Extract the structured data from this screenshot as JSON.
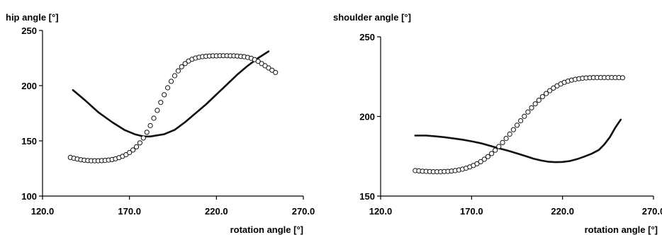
{
  "chart_data": [
    {
      "type": "line",
      "title": "",
      "ylabel": "hip angle [°]",
      "xlabel": "rotation angle [°]",
      "xlim": [
        120,
        270
      ],
      "ylim": [
        100,
        250
      ],
      "xticks": [
        "120.0",
        "170.0",
        "220.0",
        "270.0"
      ],
      "yticks": [
        "100",
        "150",
        "200",
        "250"
      ],
      "grid": false,
      "legend": "none",
      "series": [
        {
          "style": "solid-line",
          "color": "#111111",
          "x": [
            137.5,
            145,
            152,
            160,
            167,
            173,
            178,
            182,
            186,
            190,
            196,
            202,
            208,
            214,
            220,
            226,
            232,
            238,
            244,
            250
          ],
          "y": [
            196,
            186,
            176,
            167,
            160,
            156,
            154,
            154,
            155,
            156,
            160,
            167,
            175,
            183,
            192,
            201,
            210,
            218,
            225,
            231
          ]
        },
        {
          "style": "open-circle-markers",
          "color": "#111111",
          "x": [
            136,
            138,
            140,
            142,
            144,
            146,
            148,
            150,
            152,
            154,
            156,
            158,
            160,
            162,
            164,
            166,
            168,
            170,
            172,
            174,
            176,
            178,
            180,
            182,
            184,
            186,
            188,
            190,
            192,
            194,
            196,
            198,
            200,
            202,
            204,
            206,
            208,
            210,
            212,
            214,
            216,
            218,
            220,
            222,
            224,
            226,
            228,
            230,
            232,
            234,
            236,
            238,
            240,
            242,
            244,
            246,
            248,
            250,
            252,
            254
          ],
          "y": [
            135,
            134.2,
            133.5,
            132.9,
            132.5,
            132.2,
            132,
            132,
            132,
            132.1,
            132.3,
            132.6,
            133.1,
            133.8,
            134.8,
            136,
            137.5,
            139.4,
            141.7,
            144.6,
            148.2,
            152.6,
            157.8,
            163.8,
            170.5,
            177.6,
            184.8,
            191.7,
            198.1,
            203.9,
            209,
            213.4,
            217.1,
            220,
            222.3,
            223.9,
            225,
            225.8,
            226.3,
            226.6,
            226.8,
            227,
            227,
            227.1,
            227.1,
            227.1,
            227,
            227,
            226.8,
            226.5,
            226.2,
            225.6,
            224.8,
            223.6,
            222,
            220,
            218,
            216,
            214,
            212
          ]
        }
      ]
    },
    {
      "type": "line",
      "title": "",
      "ylabel": "shoulder angle [°]",
      "xlabel": "rotation angle [°]",
      "xlim": [
        120,
        270
      ],
      "ylim": [
        150,
        250
      ],
      "xticks": [
        "120.0",
        "170.0",
        "220.0",
        "270.0"
      ],
      "yticks": [
        "150",
        "200",
        "250"
      ],
      "grid": false,
      "legend": "none",
      "series": [
        {
          "style": "solid-line",
          "color": "#111111",
          "x": [
            139,
            145,
            150,
            155,
            160,
            165,
            170,
            175,
            180,
            185,
            190,
            195,
            200,
            204,
            208,
            212,
            216,
            220,
            224,
            228,
            232,
            236,
            240,
            243,
            246,
            249,
            252
          ],
          "y": [
            188,
            188,
            187.5,
            187,
            186.2,
            185.4,
            184.4,
            183.2,
            181.6,
            180,
            178.5,
            176.8,
            175,
            173.5,
            172.4,
            171.6,
            171.3,
            171.4,
            172,
            173.2,
            174.8,
            176.6,
            179,
            182.5,
            187,
            193,
            198
          ]
        },
        {
          "style": "open-circle-markers",
          "color": "#111111",
          "x": [
            139,
            141,
            143,
            145,
            147,
            149,
            151,
            153,
            155,
            157,
            159,
            161,
            163,
            165,
            167,
            169,
            171,
            173,
            175,
            177,
            179,
            181,
            183,
            185,
            187,
            189,
            191,
            193,
            195,
            197,
            199,
            201,
            203,
            205,
            207,
            209,
            211,
            213,
            215,
            217,
            219,
            221,
            223,
            225,
            227,
            229,
            231,
            233,
            235,
            237,
            239,
            241,
            243,
            245,
            247,
            249,
            251,
            253
          ],
          "y": [
            166,
            165.8,
            165.6,
            165.5,
            165.4,
            165.3,
            165.3,
            165.3,
            165.4,
            165.5,
            165.7,
            166,
            166.4,
            166.9,
            167.5,
            168.3,
            169.2,
            170.3,
            171.6,
            173.1,
            174.8,
            176.7,
            178.8,
            181.1,
            183.6,
            186.2,
            188.9,
            191.7,
            194.5,
            197.3,
            200.1,
            202.8,
            205.4,
            207.9,
            210.2,
            212.4,
            214.4,
            216.2,
            217.8,
            219.2,
            220.4,
            221.4,
            222.2,
            222.8,
            223.3,
            223.7,
            224,
            224.2,
            224.3,
            224.4,
            224.4,
            224.4,
            224.4,
            224.4,
            224.4,
            224.4,
            224.4,
            224.3
          ]
        }
      ]
    }
  ]
}
